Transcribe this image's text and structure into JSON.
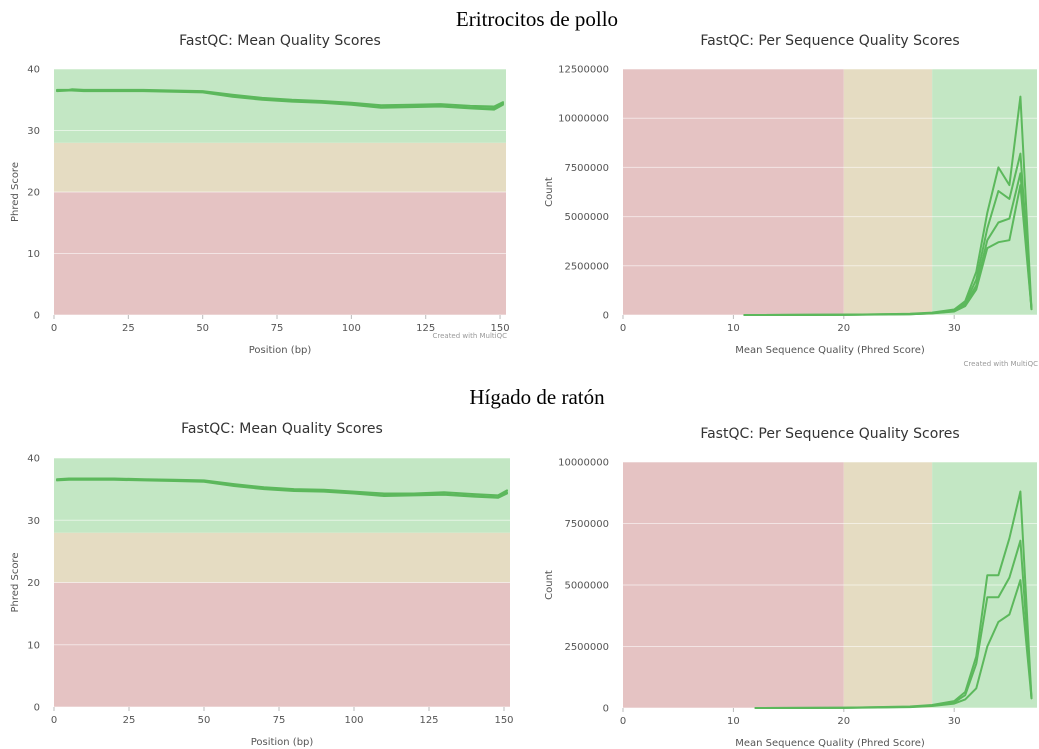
{
  "sections": [
    {
      "title": "Eritrocitos de pollo"
    },
    {
      "title": "Hígado de ratón"
    }
  ],
  "credit": "Created with MultiQC",
  "colors": {
    "zone_good": "#c3e7c4",
    "zone_warn": "#e5dcc2",
    "zone_fail": "#e5c3c3",
    "line": "#5cb85c",
    "axis_text": "#555555"
  },
  "chart_data": [
    {
      "type": "line",
      "title": "FastQC: Mean Quality Scores",
      "xlabel": "Position (bp)",
      "ylabel": "Phred Score",
      "xlim": [
        0,
        152
      ],
      "ylim": [
        0,
        40
      ],
      "x_ticks": [
        "0",
        "25",
        "50",
        "75",
        "100",
        "125",
        "150"
      ],
      "y_ticks": [
        "0",
        "10",
        "20",
        "30",
        "40"
      ],
      "zones": [
        {
          "from": 0,
          "to": 20,
          "color": "fail"
        },
        {
          "from": 20,
          "to": 28,
          "color": "warn"
        },
        {
          "from": 28,
          "to": 40,
          "color": "good"
        }
      ],
      "show_credit": true,
      "series": [
        {
          "x": [
            1,
            5,
            6,
            10,
            20,
            30,
            40,
            50,
            60,
            70,
            80,
            90,
            100,
            110,
            120,
            130,
            140,
            148,
            151
          ],
          "y": [
            36.6,
            36.6,
            36.7,
            36.6,
            36.6,
            36.6,
            36.5,
            36.4,
            35.8,
            35.3,
            35.0,
            34.8,
            34.5,
            34.1,
            34.2,
            34.3,
            34.0,
            33.9,
            34.6
          ]
        },
        {
          "x": [
            1,
            5,
            6,
            10,
            20,
            30,
            40,
            50,
            60,
            70,
            80,
            90,
            100,
            110,
            120,
            130,
            140,
            148,
            151
          ],
          "y": [
            36.5,
            36.5,
            36.6,
            36.5,
            36.5,
            36.5,
            36.4,
            36.3,
            35.6,
            35.1,
            34.8,
            34.6,
            34.3,
            33.8,
            33.9,
            34.0,
            33.7,
            33.6,
            34.4
          ]
        },
        {
          "x": [
            1,
            5,
            6,
            10,
            20,
            30,
            40,
            50,
            60,
            70,
            80,
            90,
            100,
            110,
            120,
            130,
            140,
            148,
            151
          ],
          "y": [
            36.4,
            36.5,
            36.5,
            36.4,
            36.4,
            36.4,
            36.3,
            36.2,
            35.5,
            35.0,
            34.7,
            34.5,
            34.2,
            33.7,
            33.8,
            33.9,
            33.6,
            33.4,
            34.2
          ]
        }
      ]
    },
    {
      "type": "line",
      "title": "FastQC: Per Sequence Quality Scores",
      "xlabel": "Mean Sequence Quality (Phred Score)",
      "ylabel": "Count",
      "xlim": [
        0,
        37.5
      ],
      "ylim": [
        0,
        12500000
      ],
      "x_ticks": [
        "0",
        "10",
        "20",
        "30"
      ],
      "y_ticks": [
        "0",
        "2500000",
        "5000000",
        "7500000",
        "10000000",
        "12500000"
      ],
      "zones": [
        {
          "from": 0,
          "to": 20,
          "color": "fail"
        },
        {
          "from": 20,
          "to": 28,
          "color": "warn"
        },
        {
          "from": 28,
          "to": 37.5,
          "color": "good"
        }
      ],
      "show_credit": true,
      "series": [
        {
          "x": [
            11,
            20,
            26,
            28,
            30,
            31,
            32,
            33,
            34,
            35,
            36,
            37
          ],
          "y": [
            0,
            10000,
            60000,
            120000,
            280000,
            700000,
            2200000,
            5200000,
            7500000,
            6600000,
            11100000,
            300000
          ]
        },
        {
          "x": [
            11,
            20,
            26,
            28,
            30,
            31,
            32,
            33,
            34,
            35,
            36,
            37
          ],
          "y": [
            0,
            10000,
            50000,
            100000,
            240000,
            600000,
            1800000,
            4400000,
            6300000,
            5900000,
            8200000,
            300000
          ]
        },
        {
          "x": [
            11,
            20,
            26,
            28,
            30,
            31,
            32,
            33,
            34,
            35,
            36,
            37
          ],
          "y": [
            0,
            8000,
            40000,
            90000,
            200000,
            520000,
            1500000,
            3800000,
            4700000,
            4900000,
            7200000,
            300000
          ]
        },
        {
          "x": [
            11,
            20,
            26,
            28,
            30,
            31,
            32,
            33,
            34,
            35,
            36,
            37
          ],
          "y": [
            0,
            8000,
            35000,
            80000,
            180000,
            450000,
            1300000,
            3400000,
            3700000,
            3800000,
            6600000,
            300000
          ]
        }
      ]
    },
    {
      "type": "line",
      "title": "FastQC: Mean Quality Scores",
      "xlabel": "Position (bp)",
      "ylabel": "Phred Score",
      "xlim": [
        0,
        152
      ],
      "ylim": [
        0,
        40
      ],
      "x_ticks": [
        "0",
        "25",
        "50",
        "75",
        "100",
        "125",
        "150"
      ],
      "y_ticks": [
        "0",
        "10",
        "20",
        "30",
        "40"
      ],
      "zones": [
        {
          "from": 0,
          "to": 20,
          "color": "fail"
        },
        {
          "from": 20,
          "to": 28,
          "color": "warn"
        },
        {
          "from": 28,
          "to": 40,
          "color": "good"
        }
      ],
      "show_credit": false,
      "series": [
        {
          "x": [
            1,
            5,
            10,
            20,
            30,
            40,
            50,
            60,
            70,
            80,
            90,
            100,
            110,
            120,
            130,
            140,
            148,
            151
          ],
          "y": [
            36.6,
            36.7,
            36.7,
            36.7,
            36.6,
            36.5,
            36.4,
            35.8,
            35.3,
            35.0,
            34.9,
            34.6,
            34.3,
            34.3,
            34.5,
            34.2,
            34.0,
            34.8
          ]
        },
        {
          "x": [
            1,
            5,
            10,
            20,
            30,
            40,
            50,
            60,
            70,
            80,
            90,
            100,
            110,
            120,
            130,
            140,
            148,
            151
          ],
          "y": [
            36.5,
            36.6,
            36.6,
            36.6,
            36.5,
            36.4,
            36.3,
            35.6,
            35.1,
            34.8,
            34.7,
            34.4,
            34.0,
            34.1,
            34.2,
            33.9,
            33.7,
            34.5
          ]
        },
        {
          "x": [
            1,
            5,
            10,
            20,
            30,
            40,
            50,
            60,
            70,
            80,
            90,
            100,
            110,
            120,
            130,
            140,
            148,
            151
          ],
          "y": [
            36.4,
            36.5,
            36.5,
            36.5,
            36.4,
            36.3,
            36.2,
            35.5,
            35.0,
            34.7,
            34.6,
            34.3,
            33.9,
            34.0,
            34.1,
            33.8,
            33.6,
            34.3
          ]
        }
      ]
    },
    {
      "type": "line",
      "title": "FastQC: Per Sequence Quality Scores",
      "xlabel": "Mean Sequence Quality (Phred Score)",
      "ylabel": "Count",
      "xlim": [
        0,
        37.5
      ],
      "ylim": [
        0,
        10000000
      ],
      "x_ticks": [
        "0",
        "10",
        "20",
        "30"
      ],
      "y_ticks": [
        "0",
        "2500000",
        "5000000",
        "7500000",
        "10000000"
      ],
      "zones": [
        {
          "from": 0,
          "to": 20,
          "color": "fail"
        },
        {
          "from": 20,
          "to": 28,
          "color": "warn"
        },
        {
          "from": 28,
          "to": 37.5,
          "color": "good"
        }
      ],
      "show_credit": false,
      "series": [
        {
          "x": [
            12,
            20,
            26,
            28,
            30,
            31,
            32,
            33,
            34,
            35,
            36,
            37
          ],
          "y": [
            0,
            10000,
            60000,
            120000,
            280000,
            650000,
            2100000,
            5400000,
            5400000,
            6900000,
            8800000,
            400000
          ]
        },
        {
          "x": [
            12,
            20,
            26,
            28,
            30,
            31,
            32,
            33,
            34,
            35,
            36,
            37
          ],
          "y": [
            0,
            8000,
            45000,
            100000,
            230000,
            520000,
            1800000,
            4500000,
            4500000,
            5300000,
            6800000,
            400000
          ]
        },
        {
          "x": [
            12,
            20,
            26,
            28,
            30,
            31,
            32,
            33,
            34,
            35,
            36,
            37
          ],
          "y": [
            0,
            6000,
            35000,
            80000,
            180000,
            350000,
            800000,
            2500000,
            3500000,
            3800000,
            5200000,
            400000
          ]
        }
      ]
    }
  ]
}
